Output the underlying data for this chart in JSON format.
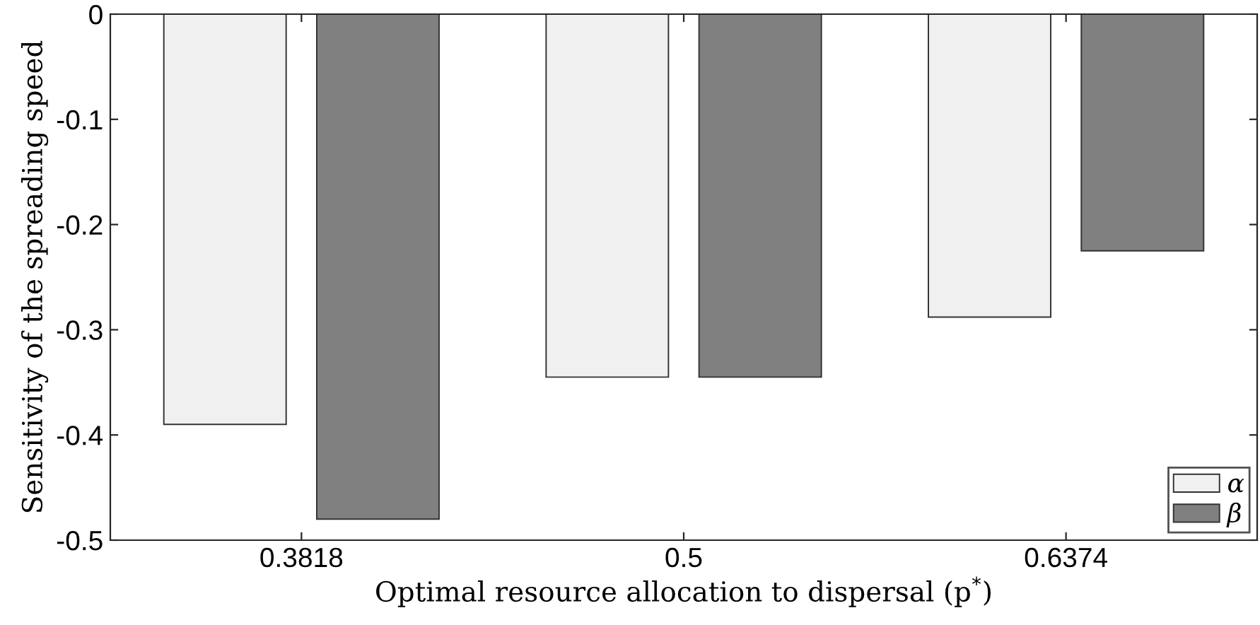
{
  "chart_data": {
    "type": "bar",
    "xlabel": "Optimal resource allocation to dispersal (p$^{*}$)",
    "ylabel": "Sensitivity of the spreading speed",
    "categories": [
      "0.3818",
      "0.5",
      "0.6374"
    ],
    "series": [
      {
        "name": "α",
        "color": "#f0f0f0",
        "values": [
          -0.39,
          -0.345,
          -0.288
        ]
      },
      {
        "name": "β",
        "color": "#808080",
        "values": [
          -0.48,
          -0.345,
          -0.225
        ]
      }
    ],
    "ylim": [
      -0.5,
      0
    ],
    "yticks": [
      -0.5,
      -0.4,
      -0.3,
      -0.2,
      -0.1,
      0
    ],
    "grid": false,
    "legend": "bottom right"
  }
}
